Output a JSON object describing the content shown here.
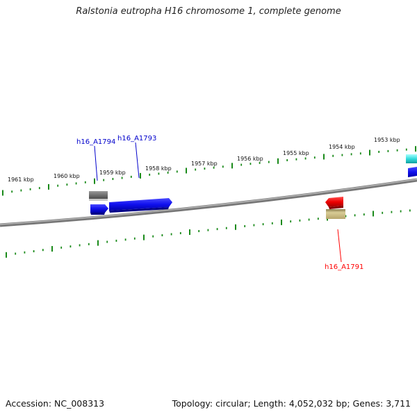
{
  "title": "Ralstonia eutropha H16 chromosome 1, complete genome",
  "scale_labels": [
    "1961 kbp",
    "1960 kbp",
    "1959 kbp",
    "1958 kbp",
    "1957 kbp",
    "1956 kbp",
    "1955 kbp",
    "1954 kbp",
    "1953 kbp"
  ],
  "gene_labels": [
    {
      "text": "h16_A1794",
      "color": "#0000cc"
    },
    {
      "text": "h16_A1793",
      "color": "#0000cc"
    },
    {
      "text": "h16_A1791",
      "color": "#ff0000"
    }
  ],
  "colors": {
    "tick": "#1a8a1a",
    "backbone": "#888888",
    "gene_blue": "#1010ee",
    "gene_gray": "#777777",
    "gene_red": "#ee0000",
    "gene_khaki": "#c2b27a",
    "gene_cyan": "#33dddd"
  },
  "footer": {
    "accession": "Accession: NC_008313",
    "summary": "Topology: circular; Length: 4,052,032 bp; Genes: 3,711"
  }
}
